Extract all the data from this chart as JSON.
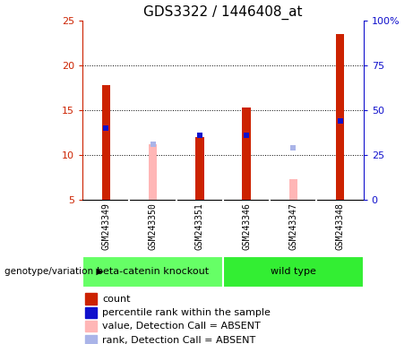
{
  "title": "GDS3322 / 1446408_at",
  "samples": [
    "GSM243349",
    "GSM243350",
    "GSM243351",
    "GSM243346",
    "GSM243347",
    "GSM243348"
  ],
  "groups": [
    {
      "label": "beta-catenin knockout",
      "indices": [
        0,
        1,
        2
      ],
      "color": "#66FF66"
    },
    {
      "label": "wild type",
      "indices": [
        3,
        4,
        5
      ],
      "color": "#33EE33"
    }
  ],
  "count_values": [
    17.8,
    null,
    12.0,
    15.3,
    null,
    23.5
  ],
  "count_absent_values": [
    null,
    11.2,
    null,
    null,
    7.3,
    null
  ],
  "rank_values": [
    13.0,
    null,
    12.2,
    12.2,
    null,
    13.8
  ],
  "rank_absent_values": [
    null,
    11.2,
    null,
    null,
    10.8,
    null
  ],
  "ylim_left": [
    5,
    25
  ],
  "ylim_right": [
    0,
    100
  ],
  "yticks_left": [
    5,
    10,
    15,
    20,
    25
  ],
  "yticks_right": [
    0,
    25,
    50,
    75,
    100
  ],
  "ytick_labels_right": [
    "0",
    "25",
    "50",
    "75",
    "100%"
  ],
  "bar_width": 0.18,
  "color_count": "#cc2200",
  "color_count_absent": "#ffb6b6",
  "color_rank": "#1010cc",
  "color_rank_absent": "#aab4e8",
  "background_plot": "#ffffff",
  "background_label": "#cccccc",
  "background_group_light": "#66FF66",
  "background_group_dark": "#33EE33",
  "title_fontsize": 11,
  "tick_fontsize": 8,
  "sample_fontsize": 7,
  "legend_fontsize": 8,
  "genotype_label": "genotype/variation"
}
